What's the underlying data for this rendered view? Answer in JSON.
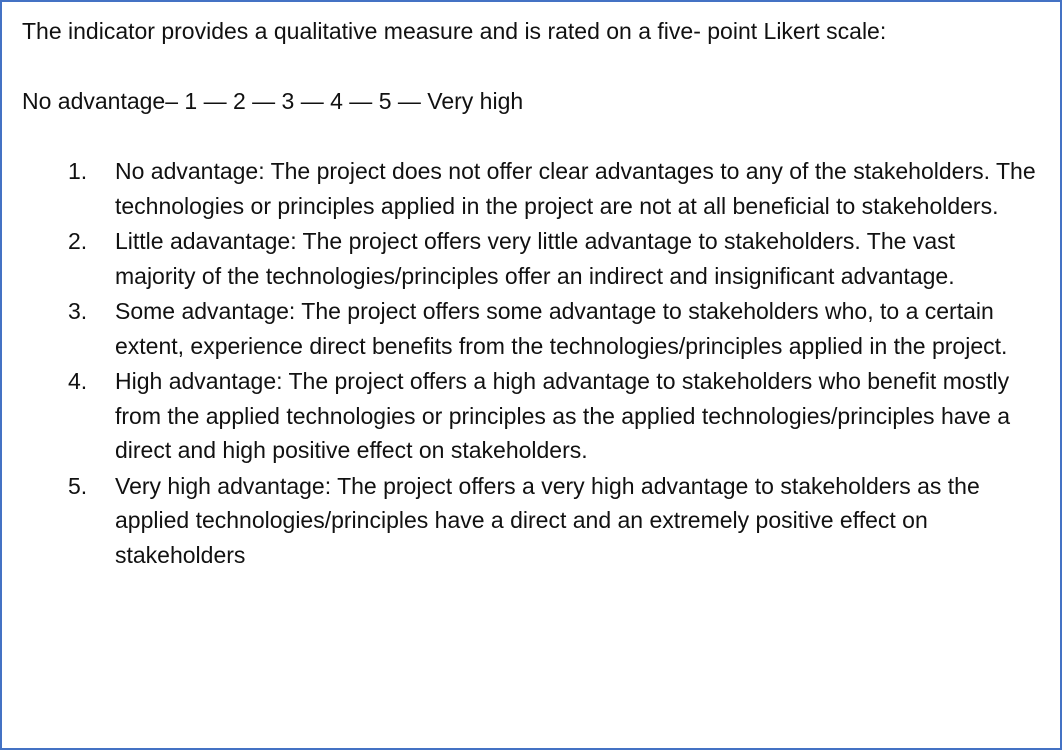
{
  "intro": "The indicator provides a qualitative measure and is rated on a five- point Likert scale:",
  "scale": "No advantage– 1 — 2 — 3 — 4 — 5 — Very high",
  "items": [
    {
      "number": "1.",
      "text": "No advantage: The project does not offer clear advantages to any of the stakeholders. The technologies or principles applied in the project are not at all beneficial to stakeholders."
    },
    {
      "number": "2.",
      "text": "Little adavantage: The project offers very little advantage to stakeholders. The vast majority of the technologies/principles offer an indirect and insignificant advantage."
    },
    {
      "number": "3.",
      "text": "Some advantage: The project offers some advantage to stakeholders who, to a certain extent, experience direct benefits from the technologies/principles applied in the project."
    },
    {
      "number": "4.",
      "text": "High advantage: The project offers a high advantage to stakeholders who benefit mostly from the applied technologies or principles as the applied technologies/principles have a direct and high positive effect on stakeholders."
    },
    {
      "number": "5.",
      "text": "Very high advantage: The project offers a very high advantage to stakeholders as the applied technologies/principles have a direct and an extremely positive effect on stakeholders"
    }
  ]
}
